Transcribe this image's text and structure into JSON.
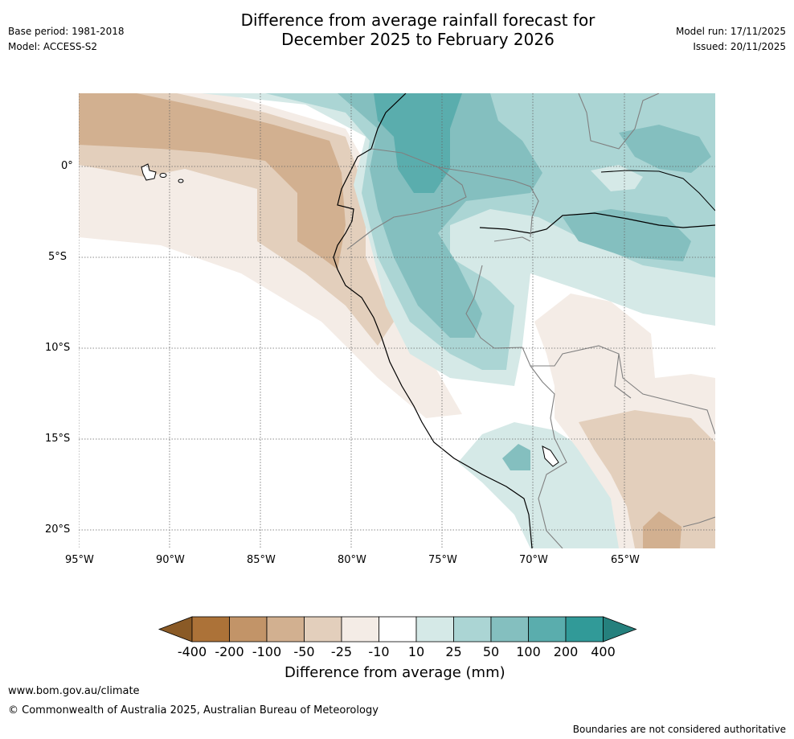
{
  "header": {
    "base_period": "Base period: 1981-2018",
    "model": "Model: ACCESS-S2",
    "title_line1": "Difference from average rainfall forecast for",
    "title_line2": "December 2025 to February 2026",
    "model_run": "Model run: 17/11/2025",
    "issued": "Issued: 20/11/2025"
  },
  "map": {
    "lat_labels": [
      "0°",
      "5°S",
      "10°S",
      "15°S",
      "20°S"
    ],
    "lon_labels": [
      "95°W",
      "90°W",
      "85°W",
      "80°W",
      "75°W",
      "70°W",
      "65°W"
    ]
  },
  "colorbar": {
    "labels": [
      "-400",
      "-200",
      "-100",
      "-50",
      "-25",
      "-10",
      "10",
      "25",
      "50",
      "100",
      "200",
      "400"
    ],
    "colors": [
      "#8a5a26",
      "#ac7238",
      "#c29468",
      "#d2b090",
      "#e3cfbc",
      "#f4ece6",
      "#ffffff",
      "#d5e9e7",
      "#abd5d4",
      "#84bfbf",
      "#5aadad",
      "#319a98",
      "#25807d"
    ],
    "title": "Difference from average (mm)"
  },
  "footer": {
    "website": "www.bom.gov.au/climate",
    "copyright": "© Commonwealth of Australia 2025, Australian Bureau of Meteorology",
    "disclaimer": "Boundaries are not considered authoritative"
  }
}
